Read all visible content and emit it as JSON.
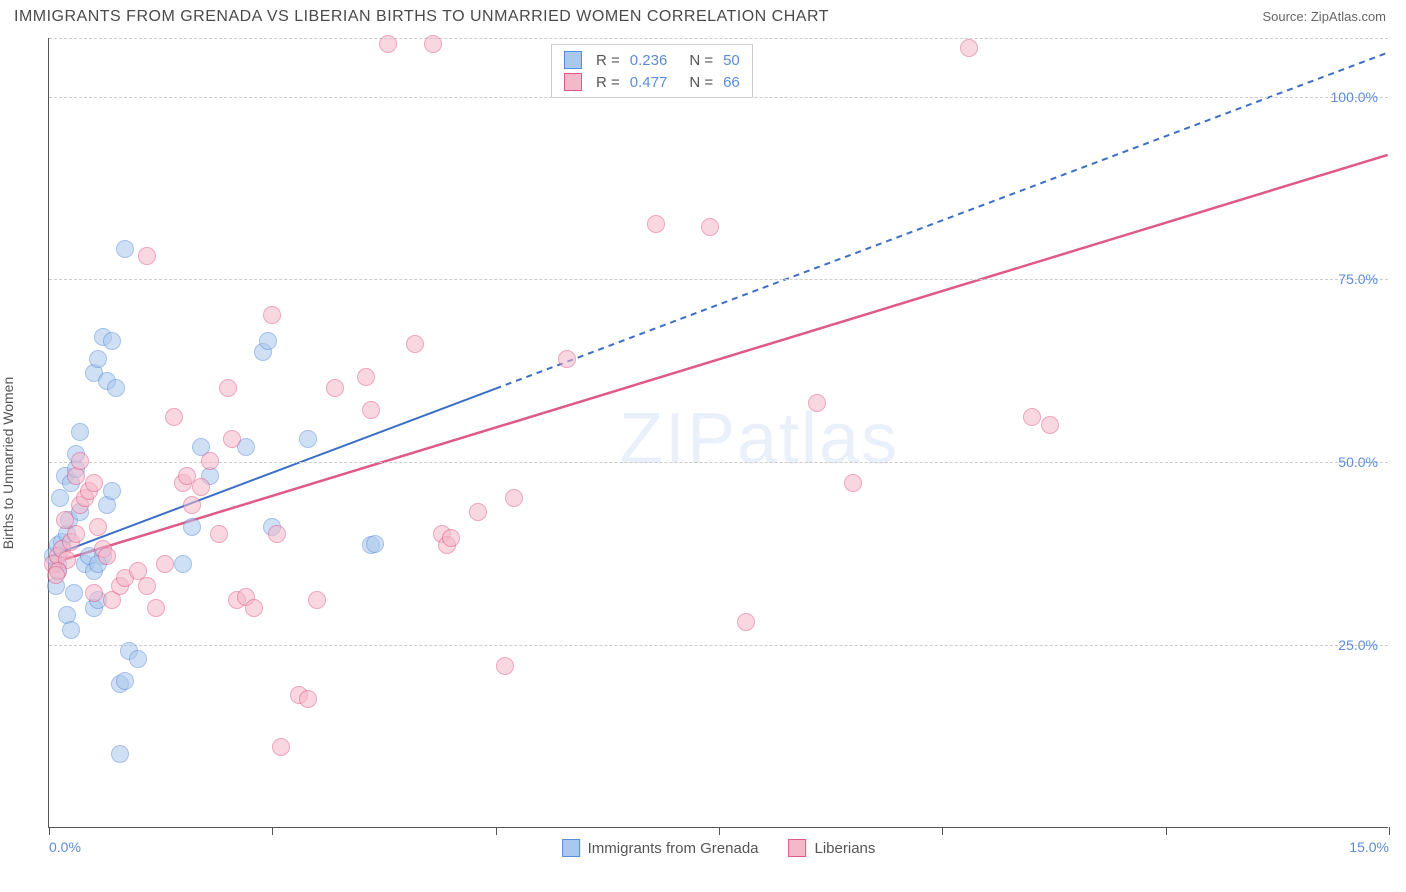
{
  "title": "IMMIGRANTS FROM GRENADA VS LIBERIAN BIRTHS TO UNMARRIED WOMEN CORRELATION CHART",
  "source": "Source: ZipAtlas.com",
  "ylabel": "Births to Unmarried Women",
  "watermark": "ZIPatlas",
  "chart": {
    "type": "scatter",
    "background_color": "#ffffff",
    "grid_color": "#cccccc",
    "grid_dash": "4,4",
    "axis_color": "#555555",
    "xlim": [
      0,
      15
    ],
    "ylim": [
      0,
      108
    ],
    "y_gridlines": [
      25,
      50,
      75,
      100,
      108
    ],
    "y_tick_labels": [
      "25.0%",
      "50.0%",
      "75.0%",
      "100.0%"
    ],
    "y_tick_values": [
      25,
      50,
      75,
      100
    ],
    "x_tick_values": [
      0,
      2.5,
      5,
      7.5,
      10,
      12.5,
      15
    ],
    "x_tick_labels_shown": {
      "0": "0.0%",
      "15": "15.0%"
    },
    "tick_label_color": "#5b8dd6",
    "tick_label_fontsize": 14,
    "marker_radius": 9,
    "marker_opacity": 0.55,
    "marker_stroke_width": 1.2
  },
  "series": [
    {
      "name": "Immigrants from Grenada",
      "fill_color": "#a8c8ed",
      "stroke_color": "#5b8dd6",
      "R": "0.236",
      "N": "50",
      "regression": {
        "x1": 0,
        "y1": 37,
        "x2_solid": 5,
        "y2_solid": 60,
        "x2_dashed": 15,
        "y2_dashed": 106,
        "color": "#3b6fc4",
        "width": 2,
        "dash": "6,5"
      },
      "points": [
        [
          0.05,
          37
        ],
        [
          0.1,
          36
        ],
        [
          0.1,
          38.5
        ],
        [
          0.15,
          39
        ],
        [
          0.1,
          35
        ],
        [
          0.08,
          33
        ],
        [
          0.2,
          40
        ],
        [
          0.12,
          45
        ],
        [
          0.18,
          48
        ],
        [
          0.25,
          47
        ],
        [
          0.3,
          49
        ],
        [
          0.22,
          42
        ],
        [
          0.35,
          43
        ],
        [
          0.4,
          36
        ],
        [
          0.45,
          37
        ],
        [
          0.5,
          35
        ],
        [
          0.28,
          32
        ],
        [
          0.6,
          37
        ],
        [
          0.55,
          36
        ],
        [
          0.65,
          44
        ],
        [
          0.7,
          46
        ],
        [
          0.5,
          62
        ],
        [
          0.55,
          64
        ],
        [
          0.6,
          67
        ],
        [
          0.65,
          61
        ],
        [
          0.7,
          66.5
        ],
        [
          0.75,
          60
        ],
        [
          0.85,
          79
        ],
        [
          0.35,
          54
        ],
        [
          0.3,
          51
        ],
        [
          0.2,
          29
        ],
        [
          0.25,
          27
        ],
        [
          0.8,
          19.5
        ],
        [
          0.85,
          20
        ],
        [
          0.5,
          30
        ],
        [
          0.55,
          31
        ],
        [
          0.9,
          24
        ],
        [
          1.0,
          23
        ],
        [
          1.5,
          36
        ],
        [
          1.6,
          41
        ],
        [
          1.8,
          48
        ],
        [
          1.7,
          52
        ],
        [
          2.2,
          52
        ],
        [
          2.4,
          65
        ],
        [
          2.45,
          66.5
        ],
        [
          2.5,
          41
        ],
        [
          2.9,
          53
        ],
        [
          3.6,
          38.5
        ],
        [
          3.65,
          38.7
        ],
        [
          0.8,
          10
        ]
      ]
    },
    {
      "name": "Liberians",
      "fill_color": "#f5b8ca",
      "stroke_color": "#e05a87",
      "R": "0.477",
      "N": "66",
      "regression": {
        "x1": 0,
        "y1": 36,
        "x2_solid": 15,
        "y2_solid": 92,
        "color": "#e05a87",
        "width": 2.5
      },
      "points": [
        [
          0.05,
          36
        ],
        [
          0.1,
          37
        ],
        [
          0.15,
          38
        ],
        [
          0.2,
          36.5
        ],
        [
          0.25,
          39
        ],
        [
          0.1,
          35
        ],
        [
          0.08,
          34.5
        ],
        [
          0.3,
          40
        ],
        [
          0.35,
          44
        ],
        [
          0.18,
          42
        ],
        [
          0.4,
          45
        ],
        [
          0.45,
          46
        ],
        [
          0.5,
          47
        ],
        [
          0.55,
          41
        ],
        [
          0.6,
          38
        ],
        [
          0.65,
          37
        ],
        [
          0.5,
          32
        ],
        [
          0.7,
          31
        ],
        [
          0.8,
          33
        ],
        [
          0.85,
          34
        ],
        [
          0.3,
          48
        ],
        [
          0.35,
          50
        ],
        [
          1.0,
          35
        ],
        [
          1.1,
          33
        ],
        [
          1.2,
          30
        ],
        [
          1.3,
          36
        ],
        [
          1.4,
          56
        ],
        [
          1.5,
          47
        ],
        [
          1.55,
          48
        ],
        [
          1.6,
          44
        ],
        [
          1.7,
          46.5
        ],
        [
          1.8,
          50
        ],
        [
          1.9,
          40
        ],
        [
          2.0,
          60
        ],
        [
          2.05,
          53
        ],
        [
          2.1,
          31
        ],
        [
          2.2,
          31.5
        ],
        [
          2.3,
          30
        ],
        [
          2.5,
          70
        ],
        [
          2.55,
          40
        ],
        [
          2.6,
          11
        ],
        [
          1.1,
          78
        ],
        [
          2.8,
          18
        ],
        [
          2.9,
          17.5
        ],
        [
          3.0,
          31
        ],
        [
          3.2,
          60
        ],
        [
          3.55,
          61.5
        ],
        [
          3.6,
          57
        ],
        [
          3.8,
          107
        ],
        [
          4.1,
          66
        ],
        [
          4.3,
          107
        ],
        [
          4.4,
          40
        ],
        [
          4.45,
          38.5
        ],
        [
          4.5,
          39.5
        ],
        [
          4.8,
          43
        ],
        [
          5.1,
          22
        ],
        [
          5.2,
          45
        ],
        [
          5.8,
          64
        ],
        [
          6.8,
          82.5
        ],
        [
          7.4,
          82
        ],
        [
          7.8,
          28
        ],
        [
          8.6,
          58
        ],
        [
          9.0,
          47
        ],
        [
          10.3,
          106.5
        ],
        [
          11.0,
          56
        ],
        [
          11.2,
          55
        ]
      ]
    }
  ],
  "bottom_legend": [
    {
      "label": "Immigrants from Grenada",
      "fill": "#a8c8ed",
      "stroke": "#5b8dd6"
    },
    {
      "label": "Liberians",
      "fill": "#f5b8ca",
      "stroke": "#e05a87"
    }
  ]
}
